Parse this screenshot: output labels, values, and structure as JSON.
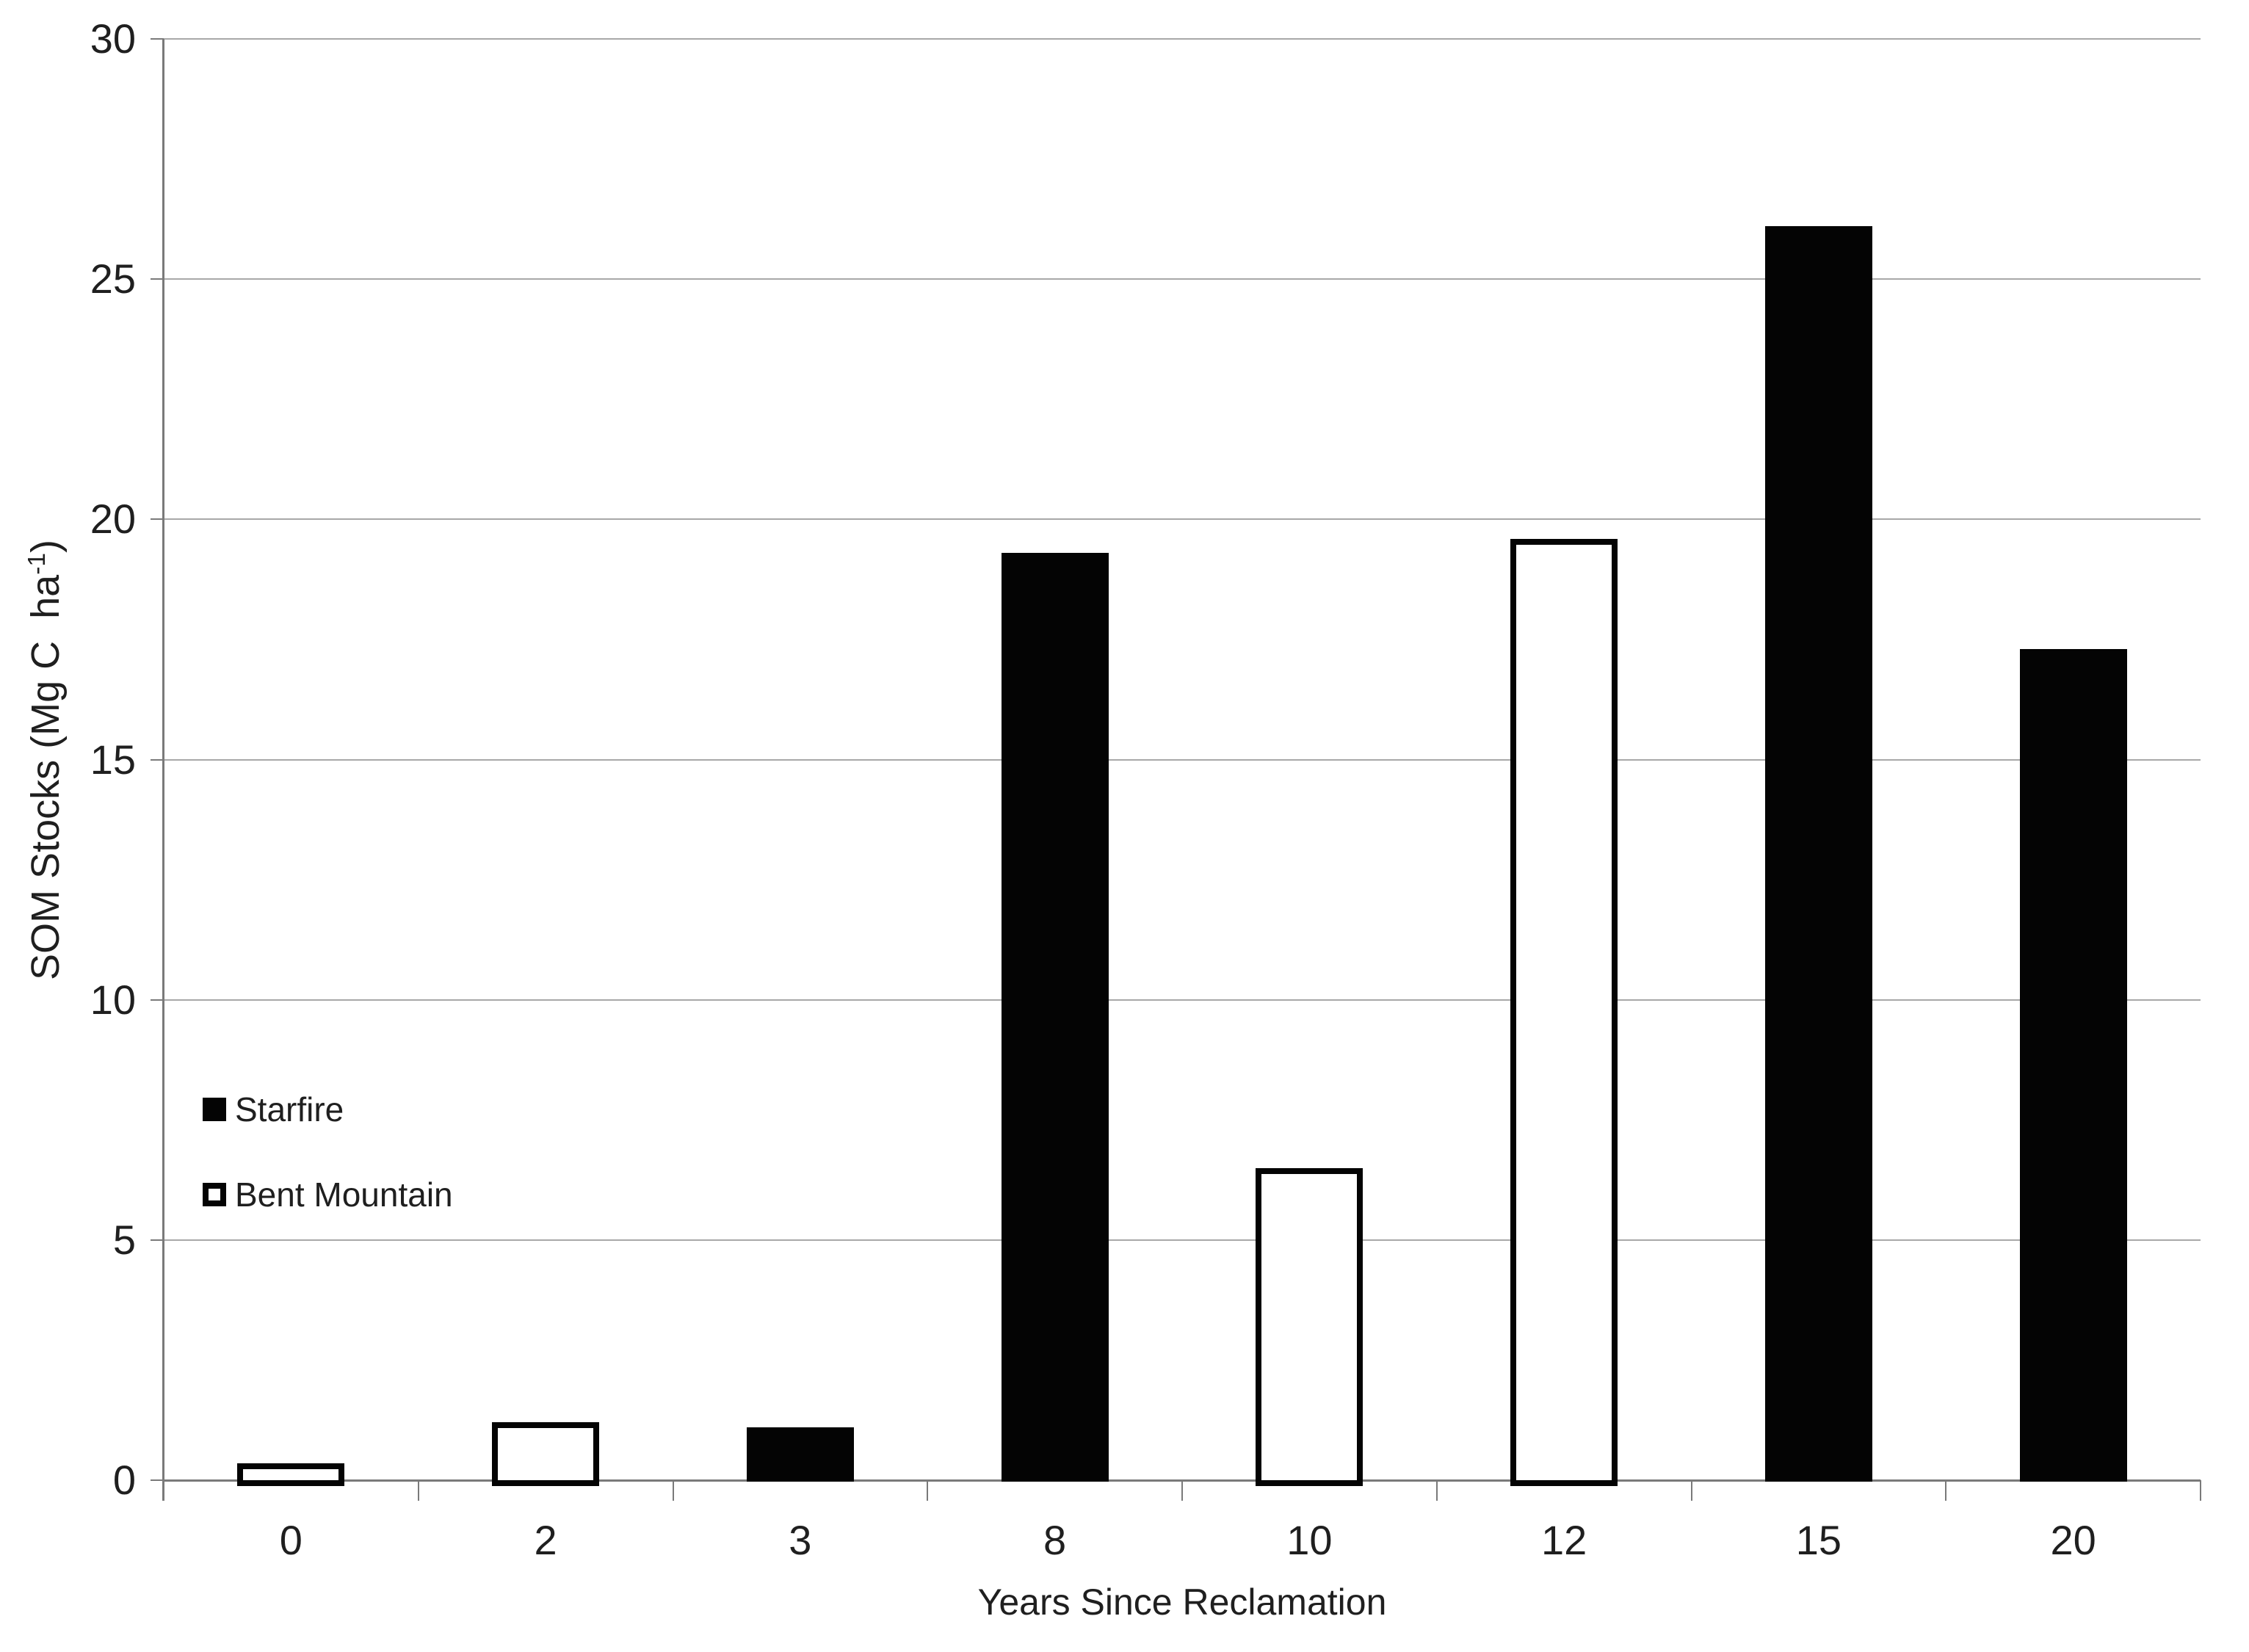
{
  "chart_data": {
    "type": "bar",
    "title": "",
    "xlabel": "Years Since Reclamation",
    "ylabel": "SOM Stocks (Mg C ha-1)",
    "ylabel_parts": {
      "prefix": "SOM Stocks (Mg C  ha",
      "superscript": "-1",
      "suffix": ")"
    },
    "categories": [
      "0",
      "2",
      "3",
      "8",
      "10",
      "12",
      "15",
      "20"
    ],
    "series": [
      {
        "name": "Starfire",
        "style": "filled",
        "fill": "#040404",
        "border": "#040404"
      },
      {
        "name": "Bent Mountain",
        "style": "outlined",
        "fill": "#ffffff",
        "border": "#040404"
      }
    ],
    "bars": [
      {
        "category": "0",
        "series": "Bent Mountain",
        "value": 0.35
      },
      {
        "category": "2",
        "series": "Bent Mountain",
        "value": 1.2
      },
      {
        "category": "3",
        "series": "Starfire",
        "value": 1.1
      },
      {
        "category": "8",
        "series": "Starfire",
        "value": 19.3
      },
      {
        "category": "10",
        "series": "Bent Mountain",
        "value": 6.5
      },
      {
        "category": "12",
        "series": "Bent Mountain",
        "value": 19.6
      },
      {
        "category": "15",
        "series": "Starfire",
        "value": 26.1
      },
      {
        "category": "20",
        "series": "Starfire",
        "value": 17.3
      }
    ],
    "ylim": [
      0,
      30
    ],
    "yticks": [
      0,
      5,
      10,
      15,
      20,
      25,
      30
    ],
    "grid": true,
    "legend_position": "inside-left",
    "colors": {
      "bar_fill": "#040404",
      "grid": "#a8a8a8",
      "axis": "#7a7a7a",
      "text": "#1f1f1f",
      "background": "#ffffff"
    }
  }
}
